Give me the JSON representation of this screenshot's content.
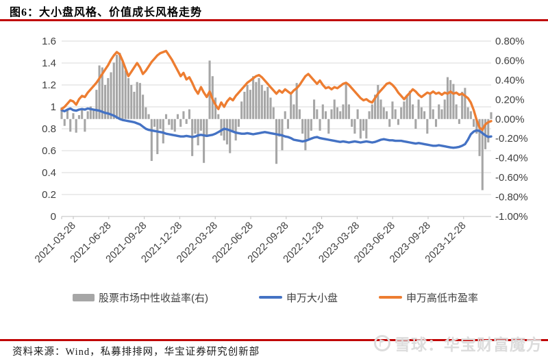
{
  "title": "图6：大小盘风格、价值成长风格走势",
  "source_note": "资料来源：Wind，私募排排网，华宝证券研究创新部",
  "watermark": {
    "logo": "xueqiu-logo",
    "text": "雪球：华宝财富魔方"
  },
  "colors": {
    "accent_red": "#C00000",
    "bar_gray": "#A6A6A6",
    "line_blue": "#4472C4",
    "line_orange": "#ED7D31",
    "grid": "#D9D9D9",
    "axis_text": "#404040",
    "watermark_gray": "#DCDCDC"
  },
  "chart_data": {
    "type": "combo (weekly bars + 2 lines)",
    "grid": "horizontal on",
    "legend_position": "bottom",
    "x_tick_labels": [
      "2021-03-28",
      "2021-06-28",
      "2021-09-28",
      "2021-12-28",
      "2022-03-28",
      "2022-06-28",
      "2022-09-28",
      "2022-12-28",
      "2023-03-28",
      "2023-06-28",
      "2023-09-28",
      "2023-12-28"
    ],
    "left_axis": {
      "range": [
        0,
        1.6
      ],
      "tick_step": 0.2,
      "tick_labels": [
        "1.6",
        "1.4",
        "1.2",
        "1",
        "0.8",
        "0.6",
        "0.4",
        "0.2",
        "0"
      ]
    },
    "right_axis": {
      "range_pct": [
        -1.0,
        0.8
      ],
      "tick_step_pct": 0.2,
      "tick_labels": [
        "0.80%",
        "0.60%",
        "0.40%",
        "0.20%",
        "0.00%",
        "-0.20%",
        "-0.40%",
        "-0.60%",
        "-0.80%",
        "-1.00%"
      ]
    },
    "series": [
      {
        "key": "market-neutral-return-bars",
        "name": "股票市场中性收益率(右)",
        "type": "bar",
        "axis": "right",
        "unit": "%",
        "color": "#A6A6A6",
        "values": [
          0.12,
          -0.07,
          0.1,
          -0.13,
          0.06,
          -0.14,
          0.04,
          0.1,
          -0.13,
          0.08,
          0.13,
          0.1,
          0.3,
          0.55,
          0.53,
          0.35,
          0.42,
          0.48,
          0.58,
          0.66,
          0.68,
          0.6,
          0.5,
          0.42,
          0.35,
          0.28,
          0.38,
          0.37,
          0.25,
          0.12,
          0.05,
          -0.43,
          -0.08,
          -0.36,
          -0.1,
          -0.25,
          0.05,
          -0.06,
          -0.11,
          -0.13,
          0.05,
          -0.08,
          0.08,
          -0.05,
          0.1,
          -0.38,
          -0.15,
          -0.27,
          -0.12,
          -0.45,
          -0.18,
          0.6,
          0.44,
          0.22,
          0.05,
          -0.17,
          -0.22,
          -0.26,
          -0.35,
          -0.12,
          -0.22,
          -0.08,
          0.18,
          0.28,
          0.35,
          0.3,
          0.44,
          0.38,
          0.42,
          0.35,
          0.29,
          0.33,
          0.22,
          0.12,
          -0.46,
          -0.18,
          -0.32,
          0.08,
          -0.1,
          0.25,
          0.15,
          0.37,
          0.1,
          -0.15,
          -0.32,
          -0.2,
          -0.12,
          0.2,
          0.1,
          -0.12,
          0.15,
          0.08,
          -0.15,
          0.1,
          0.2,
          0.12,
          0.08,
          0.15,
          0.37,
          0.15,
          -0.08,
          -0.15,
          0.1,
          -0.2,
          -0.12,
          -0.2,
          0.08,
          0.15,
          0.25,
          0.35,
          0.2,
          0.12,
          0.08,
          -0.08,
          0.18,
          0.1,
          -0.06,
          0.12,
          0.18,
          0.25,
          0.29,
          0.15,
          -0.1,
          0.2,
          0.12,
          0.08,
          -0.15,
          0.25,
          0.1,
          -0.08,
          0.15,
          0.1,
          0.2,
          0.43,
          0.4,
          0.36,
          0.15,
          -0.05,
          0.28,
          0.32,
          0.12,
          0.08,
          -0.08,
          -0.15,
          -0.38,
          -0.73,
          -0.31,
          -0.24,
          0.07
        ]
      },
      {
        "key": "sw-large-small-cap",
        "name": "申万大小盘",
        "type": "line",
        "axis": "left",
        "color": "#4472C4",
        "values": [
          0.97,
          0.96,
          0.975,
          0.985,
          0.97,
          0.965,
          0.975,
          0.98,
          0.975,
          0.985,
          0.98,
          0.975,
          0.97,
          0.965,
          0.955,
          0.945,
          0.94,
          0.93,
          0.92,
          0.905,
          0.89,
          0.88,
          0.875,
          0.87,
          0.865,
          0.86,
          0.85,
          0.84,
          0.82,
          0.8,
          0.79,
          0.785,
          0.78,
          0.775,
          0.77,
          0.765,
          0.755,
          0.75,
          0.745,
          0.74,
          0.735,
          0.73,
          0.73,
          0.735,
          0.73,
          0.725,
          0.73,
          0.74,
          0.745,
          0.74,
          0.735,
          0.74,
          0.745,
          0.755,
          0.77,
          0.785,
          0.8,
          0.795,
          0.785,
          0.775,
          0.765,
          0.76,
          0.755,
          0.755,
          0.76,
          0.755,
          0.75,
          0.755,
          0.76,
          0.765,
          0.77,
          0.765,
          0.76,
          0.755,
          0.75,
          0.745,
          0.74,
          0.73,
          0.725,
          0.715,
          0.7,
          0.695,
          0.69,
          0.685,
          0.69,
          0.7,
          0.71,
          0.72,
          0.725,
          0.715,
          0.71,
          0.705,
          0.7,
          0.695,
          0.69,
          0.685,
          0.68,
          0.685,
          0.68,
          0.675,
          0.68,
          0.685,
          0.68,
          0.675,
          0.68,
          0.685,
          0.68,
          0.675,
          0.68,
          0.69,
          0.7,
          0.705,
          0.7,
          0.695,
          0.695,
          0.69,
          0.69,
          0.69,
          0.685,
          0.68,
          0.675,
          0.67,
          0.665,
          0.67,
          0.665,
          0.66,
          0.655,
          0.65,
          0.645,
          0.645,
          0.65,
          0.645,
          0.64,
          0.635,
          0.63,
          0.627,
          0.63,
          0.635,
          0.645,
          0.66,
          0.7,
          0.75,
          0.775,
          0.785,
          0.78,
          0.76,
          0.74,
          0.725,
          0.73
        ]
      },
      {
        "key": "sw-high-low-pe",
        "name": "申万高低市盈率",
        "type": "line",
        "axis": "left",
        "color": "#ED7D31",
        "values": [
          0.98,
          1.0,
          1.03,
          1.06,
          1.05,
          1.02,
          1.07,
          1.1,
          1.09,
          1.13,
          1.16,
          1.19,
          1.22,
          1.26,
          1.3,
          1.34,
          1.38,
          1.43,
          1.47,
          1.5,
          1.48,
          1.42,
          1.35,
          1.28,
          1.32,
          1.36,
          1.4,
          1.36,
          1.3,
          1.33,
          1.37,
          1.41,
          1.44,
          1.47,
          1.49,
          1.5,
          1.51,
          1.47,
          1.43,
          1.38,
          1.33,
          1.28,
          1.31,
          1.25,
          1.27,
          1.22,
          1.16,
          1.12,
          1.18,
          1.13,
          1.09,
          1.14,
          1.07,
          1.02,
          0.98,
          1.04,
          1.0,
          1.05,
          1.08,
          1.06,
          1.1,
          1.13,
          1.16,
          1.19,
          1.22,
          1.24,
          1.26,
          1.28,
          1.29,
          1.27,
          1.24,
          1.21,
          1.18,
          1.15,
          1.12,
          1.15,
          1.13,
          1.16,
          1.14,
          1.12,
          1.15,
          1.17,
          1.2,
          1.24,
          1.28,
          1.3,
          1.27,
          1.24,
          1.21,
          1.24,
          1.2,
          1.17,
          1.18,
          1.16,
          1.18,
          1.17,
          1.19,
          1.21,
          1.22,
          1.2,
          1.17,
          1.14,
          1.11,
          1.08,
          1.06,
          1.07,
          1.05,
          1.04,
          1.08,
          1.12,
          1.15,
          1.18,
          1.21,
          1.22,
          1.2,
          1.17,
          1.13,
          1.1,
          1.07,
          1.1,
          1.13,
          1.16,
          1.14,
          1.11,
          1.09,
          1.11,
          1.13,
          1.12,
          1.14,
          1.12,
          1.13,
          1.11,
          1.13,
          1.12,
          1.14,
          1.12,
          1.13,
          1.11,
          1.12,
          1.1,
          1.08,
          1.04,
          0.97,
          0.88,
          0.81,
          0.79,
          0.84,
          0.86,
          0.87
        ]
      }
    ]
  }
}
